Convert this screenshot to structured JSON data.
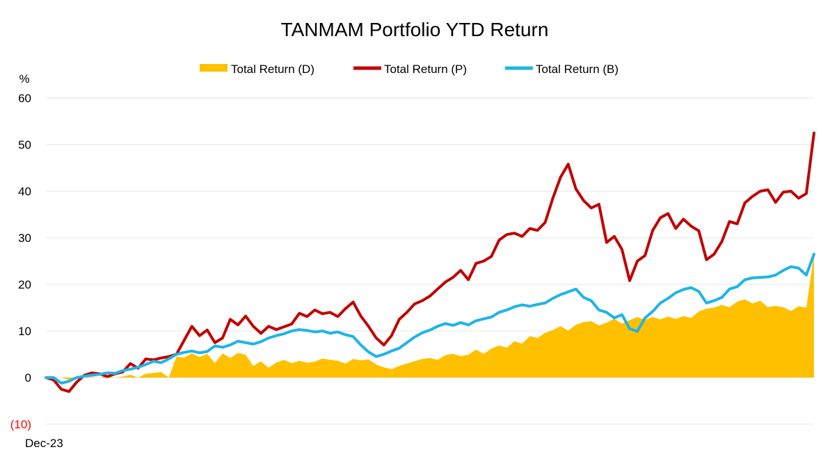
{
  "chart_data": {
    "type": "line",
    "title": "TANMAM Portfolio YTD Return",
    "y_unit": "%",
    "ylim": [
      -10,
      60
    ],
    "y_ticks": [
      {
        "value": 60,
        "label": "60"
      },
      {
        "value": 50,
        "label": "50"
      },
      {
        "value": 40,
        "label": "40"
      },
      {
        "value": 30,
        "label": "30"
      },
      {
        "value": 20,
        "label": "20"
      },
      {
        "value": 10,
        "label": "10"
      },
      {
        "value": 0,
        "label": "0"
      },
      {
        "value": -10,
        "label": "(10)"
      }
    ],
    "x_start_label": "Dec-23",
    "x_range": [
      0,
      100
    ],
    "grid": true,
    "legend_position": "top-center",
    "series": [
      {
        "name": "Total Return (D)",
        "kind": "area",
        "color": "#FFC000",
        "points": [
          [
            0,
            0
          ],
          [
            1,
            0
          ],
          [
            2,
            0
          ],
          [
            3,
            -0.5
          ],
          [
            4,
            0
          ],
          [
            5,
            0
          ],
          [
            6,
            0.1
          ],
          [
            7,
            0
          ],
          [
            8,
            0.3
          ],
          [
            9,
            0
          ],
          [
            10,
            0.2
          ],
          [
            11,
            0.6
          ],
          [
            12,
            0
          ],
          [
            13,
            0.8
          ],
          [
            14,
            1
          ],
          [
            15,
            1.2
          ],
          [
            16,
            0
          ],
          [
            17,
            4.5
          ],
          [
            18,
            4.3
          ],
          [
            19,
            5.2
          ],
          [
            20,
            4.4
          ],
          [
            21,
            5.1
          ],
          [
            22,
            3.1
          ],
          [
            23,
            5.2
          ],
          [
            24,
            4.2
          ],
          [
            25,
            5.3
          ],
          [
            26,
            4.9
          ],
          [
            27,
            2.5
          ],
          [
            28,
            3.5
          ],
          [
            29,
            2.1
          ],
          [
            30,
            3.2
          ],
          [
            31,
            3.8
          ],
          [
            32,
            3.1
          ],
          [
            33,
            3.6
          ],
          [
            34,
            3.2
          ],
          [
            35,
            3.4
          ],
          [
            36,
            4.1
          ],
          [
            37,
            3.8
          ],
          [
            38,
            3.6
          ],
          [
            39,
            3.0
          ],
          [
            40,
            4.0
          ],
          [
            41,
            3.7
          ],
          [
            42,
            3.9
          ],
          [
            43,
            2.8
          ],
          [
            44,
            2.2
          ],
          [
            45,
            1.8
          ],
          [
            46,
            2.5
          ],
          [
            47,
            3.0
          ],
          [
            48,
            3.5
          ],
          [
            49,
            4.0
          ],
          [
            50,
            4.2
          ],
          [
            51,
            3.8
          ],
          [
            52,
            4.8
          ],
          [
            53,
            5.1
          ],
          [
            54,
            4.6
          ],
          [
            55,
            4.9
          ],
          [
            56,
            6.0
          ],
          [
            57,
            5.1
          ],
          [
            58,
            6.2
          ],
          [
            59,
            6.9
          ],
          [
            60,
            6.4
          ],
          [
            61,
            7.8
          ],
          [
            62,
            7.3
          ],
          [
            63,
            8.9
          ],
          [
            64,
            8.5
          ],
          [
            65,
            9.6
          ],
          [
            66,
            10.2
          ],
          [
            67,
            11.0
          ],
          [
            68,
            10.1
          ],
          [
            69,
            11.3
          ],
          [
            70,
            11.9
          ],
          [
            71,
            12.1
          ],
          [
            72,
            11.2
          ],
          [
            73,
            11.8
          ],
          [
            74,
            12.6
          ],
          [
            75,
            11.6
          ],
          [
            76,
            12.3
          ],
          [
            77,
            13.0
          ],
          [
            78,
            12.4
          ],
          [
            79,
            13.0
          ],
          [
            80,
            12.5
          ],
          [
            81,
            13.1
          ],
          [
            82,
            12.6
          ],
          [
            83,
            13.2
          ],
          [
            84,
            12.8
          ],
          [
            85,
            14.2
          ],
          [
            86,
            14.8
          ],
          [
            87,
            15.0
          ],
          [
            88,
            15.6
          ],
          [
            89,
            15.1
          ],
          [
            90,
            16.3
          ],
          [
            91,
            16.8
          ],
          [
            92,
            15.9
          ],
          [
            93,
            16.5
          ],
          [
            94,
            15.1
          ],
          [
            95,
            15.4
          ],
          [
            96,
            15.1
          ],
          [
            97,
            14.3
          ],
          [
            98,
            15.3
          ],
          [
            99,
            15.0
          ],
          [
            100,
            26.5
          ]
        ],
        "data_source_note": "approximate; sampled visually"
      },
      {
        "name": "Total Return (P)",
        "kind": "line",
        "color": "#C00000"
      },
      {
        "name": "Total Return (B)",
        "kind": "line",
        "color": "#1FB4E6"
      }
    ]
  }
}
